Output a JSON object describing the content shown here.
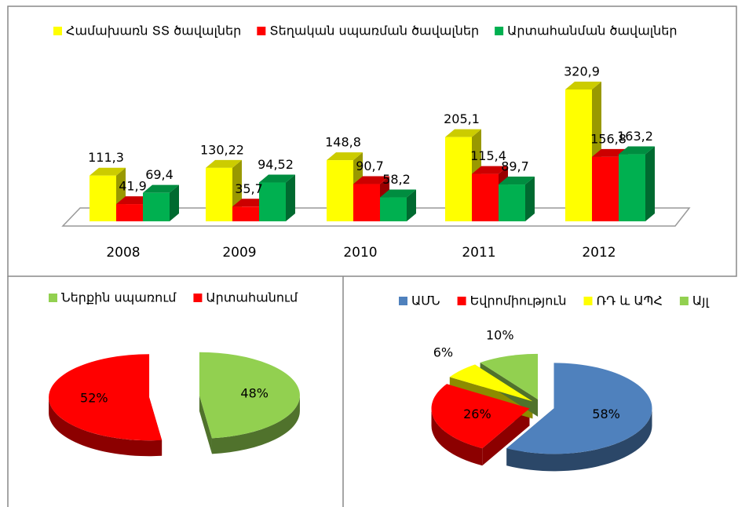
{
  "chart_data": [
    {
      "type": "bar3d",
      "categories": [
        "2008",
        "2009",
        "2010",
        "2011",
        "2012"
      ],
      "series": [
        {
          "name": "Համախառն ՏՏ ծավալներ",
          "color": "#ffff00",
          "values": [
            111.3,
            130.22,
            148.8,
            205.1,
            320.9
          ],
          "value_labels": [
            "111,3",
            "130,22",
            "148,8",
            "205,1",
            "320,9"
          ]
        },
        {
          "name": "Տեղական սպառման ծավալներ",
          "color": "#ff0000",
          "values": [
            41.9,
            35.7,
            90.7,
            115.4,
            156.8
          ],
          "value_labels": [
            "41,9",
            "35,7",
            "90,7",
            "115,4",
            "156,8"
          ]
        },
        {
          "name": "Արտահանման ծավալներ",
          "color": "#00b050",
          "values": [
            69.4,
            94.52,
            58.2,
            89.7,
            163.2
          ],
          "value_labels": [
            "69,4",
            "94,52",
            "58,2",
            "89,7",
            "163,2"
          ]
        }
      ]
    },
    {
      "type": "pie3d",
      "categories": [
        "Ներքին սպառում",
        "Արտահանում"
      ],
      "values": [
        48,
        52
      ],
      "value_labels": [
        "48%",
        "52%"
      ],
      "colors": [
        "#92d050",
        "#ff0000"
      ]
    },
    {
      "type": "pie3d",
      "categories": [
        "ԱՄՆ",
        "Եվրոմիություն",
        "ՌԴ և ԱՊՀ",
        "Այլ"
      ],
      "values": [
        58,
        26,
        6,
        10
      ],
      "value_labels": [
        "58%",
        "26%",
        "6%",
        "10%"
      ],
      "colors": [
        "#4f81bd",
        "#ff0000",
        "#ffff00",
        "#92d050"
      ]
    }
  ]
}
